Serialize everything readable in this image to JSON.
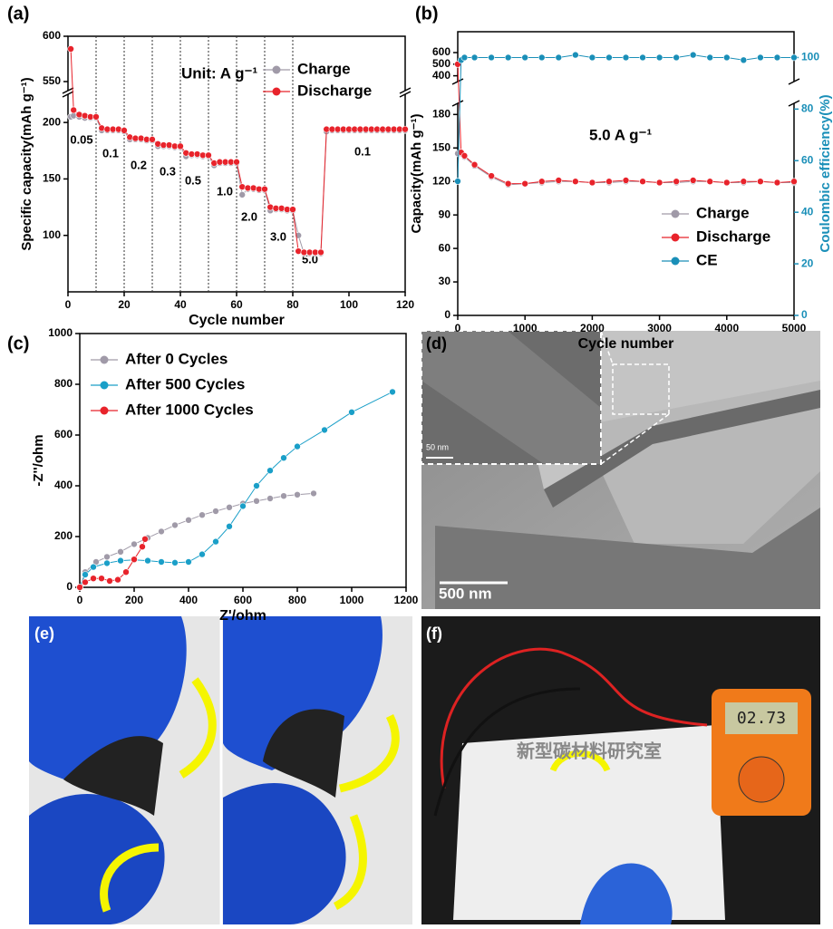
{
  "chart_data": [
    {
      "type": "line",
      "panel_label": "(a)",
      "xlabel": "Cycle number",
      "ylabel": "Specific capacity(mAh g⁻¹)",
      "annotation": "Unit: A g⁻¹",
      "rate_labels": [
        "0.05",
        "0.1",
        "0.2",
        "0.3",
        "0.5",
        "1.0",
        "2.0",
        "3.0",
        "5.0",
        "0.1"
      ],
      "dividers": [
        10,
        20,
        30,
        40,
        50,
        60,
        70,
        80
      ],
      "xlim": [
        0,
        120
      ],
      "xticks": [
        0,
        20,
        40,
        60,
        80,
        100,
        120
      ],
      "ylim": [
        50,
        600
      ],
      "y_break": [
        225,
        540
      ],
      "yticks": [
        100,
        150,
        200,
        550,
        600
      ],
      "legend": "top right",
      "x": [
        1,
        2,
        4,
        6,
        8,
        10,
        12,
        14,
        16,
        18,
        20,
        22,
        24,
        26,
        28,
        30,
        32,
        34,
        36,
        38,
        40,
        42,
        44,
        46,
        48,
        50,
        52,
        54,
        56,
        58,
        60,
        62,
        64,
        66,
        68,
        70,
        72,
        74,
        76,
        78,
        80,
        82,
        84,
        86,
        88,
        90,
        92,
        94,
        96,
        98,
        100,
        102,
        104,
        106,
        108,
        110,
        112,
        114,
        116,
        118,
        120
      ],
      "series": [
        {
          "name": "Charge",
          "color": "#a09aa8",
          "values": [
            205,
            206,
            205,
            204,
            204,
            204,
            193,
            193,
            193,
            193,
            192,
            185,
            185,
            185,
            184,
            184,
            179,
            179,
            179,
            178,
            178,
            170,
            171,
            171,
            170,
            170,
            162,
            164,
            164,
            164,
            164,
            136,
            141,
            141,
            140,
            140,
            122,
            123,
            123,
            122,
            122,
            100,
            84,
            84,
            84,
            84,
            192,
            193,
            193,
            193,
            193,
            193,
            193,
            193,
            193,
            193,
            193,
            193,
            193,
            193,
            193
          ]
        },
        {
          "name": "Discharge",
          "color": "#e8232b",
          "values": [
            586,
            211,
            207,
            206,
            205,
            205,
            195,
            194,
            194,
            194,
            193,
            187,
            186,
            186,
            185,
            185,
            181,
            180,
            180,
            179,
            179,
            173,
            172,
            172,
            171,
            171,
            164,
            165,
            165,
            165,
            165,
            143,
            142,
            142,
            141,
            141,
            125,
            124,
            124,
            123,
            123,
            86,
            85,
            85,
            85,
            85,
            194,
            194,
            194,
            194,
            194,
            194,
            194,
            194,
            194,
            194,
            194,
            194,
            194,
            194,
            194
          ]
        }
      ]
    },
    {
      "type": "line",
      "panel_label": "(b)",
      "xlabel": "Cycle number",
      "ylabel": "Capacity(mAh g⁻¹)",
      "y2label": "Coulombic efficiency(%)",
      "annotation": "5.0 A g⁻¹",
      "xlim": [
        0,
        5000
      ],
      "xticks": [
        0,
        1000,
        2000,
        3000,
        4000,
        5000
      ],
      "ylim": [
        0,
        780
      ],
      "y_break": [
        190,
        350
      ],
      "yticks": [
        0,
        30,
        60,
        90,
        120,
        150,
        180,
        400,
        500,
        600
      ],
      "y2lim": [
        0,
        110
      ],
      "y2ticks": [
        0,
        20,
        40,
        60,
        80,
        100
      ],
      "legend": "bottom right",
      "x": [
        0,
        50,
        100,
        250,
        500,
        750,
        1000,
        1250,
        1500,
        1750,
        2000,
        2250,
        2500,
        2750,
        3000,
        3250,
        3500,
        3750,
        4000,
        4250,
        4500,
        4750,
        5000
      ],
      "series": [
        {
          "name": "Charge",
          "color": "#a09aa8",
          "values": [
            145,
            145,
            142,
            134,
            124,
            117,
            118,
            119,
            120,
            120,
            119,
            119,
            120,
            120,
            119,
            119,
            120,
            120,
            119,
            119,
            120,
            119,
            119
          ]
        },
        {
          "name": "Discharge",
          "color": "#e8232b",
          "values": [
            500,
            146,
            143,
            135,
            125,
            118,
            118,
            120,
            121,
            120,
            119,
            120,
            121,
            120,
            119,
            120,
            121,
            120,
            119,
            120,
            120,
            119,
            120
          ]
        },
        {
          "name": "CE",
          "color": "#1a8fb8",
          "axis": "y2",
          "values": [
            52,
            99,
            100,
            100,
            100,
            100,
            100,
            100,
            100,
            101,
            100,
            100,
            100,
            100,
            100,
            100,
            101,
            100,
            100,
            99,
            100,
            100,
            100
          ]
        }
      ]
    },
    {
      "type": "line",
      "panel_label": "(c)",
      "xlabel": "Z'/ohm",
      "ylabel": "-Z''/ohm",
      "xlim": [
        0,
        1200
      ],
      "xticks": [
        0,
        200,
        400,
        600,
        800,
        1000,
        1200
      ],
      "ylim": [
        0,
        1000
      ],
      "yticks": [
        0,
        200,
        400,
        600,
        800,
        1000
      ],
      "legend": "top left",
      "series": [
        {
          "name": "After 0 Cycles",
          "color": "#a09aa8",
          "x": [
            0,
            20,
            60,
            100,
            150,
            200,
            250,
            300,
            350,
            400,
            450,
            500,
            550,
            600,
            650,
            700,
            750,
            800,
            860
          ],
          "values": [
            0,
            60,
            100,
            120,
            140,
            170,
            195,
            220,
            245,
            265,
            285,
            300,
            315,
            330,
            340,
            350,
            360,
            365,
            370
          ]
        },
        {
          "name": "After 500 Cycles",
          "color": "#1a9fc8",
          "x": [
            0,
            20,
            50,
            100,
            150,
            200,
            250,
            300,
            350,
            400,
            450,
            500,
            550,
            600,
            650,
            700,
            750,
            800,
            900,
            1000,
            1150
          ],
          "values": [
            0,
            50,
            80,
            95,
            105,
            108,
            105,
            100,
            97,
            100,
            130,
            180,
            240,
            320,
            400,
            460,
            510,
            555,
            620,
            690,
            770
          ]
        },
        {
          "name": "After 1000 Cycles",
          "color": "#e8232b",
          "x": [
            0,
            20,
            50,
            80,
            110,
            140,
            170,
            200,
            230,
            240
          ],
          "values": [
            0,
            20,
            35,
            35,
            25,
            30,
            60,
            110,
            160,
            190
          ]
        }
      ]
    }
  ],
  "panels": [
    {
      "label": "(d)",
      "texts": [
        "50 nm",
        "500 nm"
      ]
    },
    {
      "label": "(e)"
    },
    {
      "label": "(f)",
      "texts": [
        "新型碳材料研究室",
        "02.73"
      ]
    }
  ]
}
